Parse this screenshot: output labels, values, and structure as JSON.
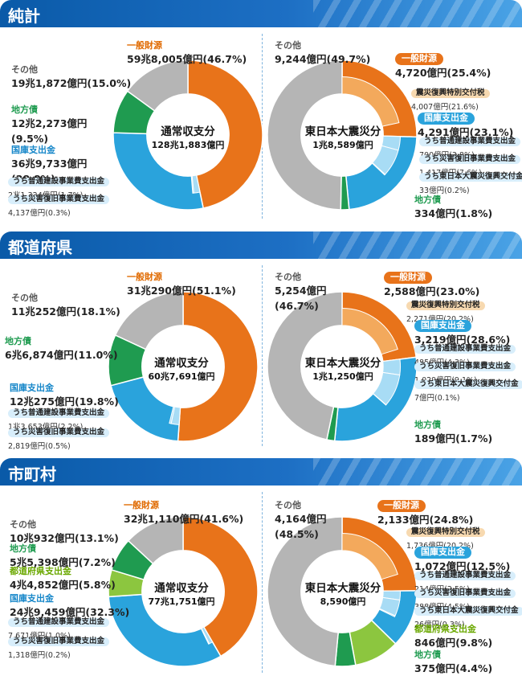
{
  "sections": [
    {
      "title": "純計",
      "left": {
        "center_title": "通常収支分",
        "center_total": "128兆1,883億円",
        "labels": [
          {
            "cat": "一般財源",
            "val": "59兆8,005億円(46.7%)"
          },
          {
            "cat": "その他",
            "val": "19兆1,872億円(15.0%)"
          },
          {
            "cat": "地方債",
            "val": "12兆2,273億円",
            "val2": "(9.5%)"
          },
          {
            "cat": "国庫支出金",
            "val": "36兆9,733億円",
            "val2": "(28.8%)"
          }
        ],
        "subs": [
          {
            "name": "うち普通建設事業費支出金",
            "val": "2兆1,324億円(1.7%)"
          },
          {
            "name": "うち災害復旧事業費支出金",
            "val": "4,137億円(0.3%)"
          }
        ]
      },
      "right": {
        "center_title": "東日本大震災分",
        "center_total": "1兆8,589億円",
        "labels": [
          {
            "cat": "その他",
            "val": "9,244億円(49.7%)"
          },
          {
            "cat": "一般財源",
            "val": "4,720億円(25.4%)"
          },
          {
            "cat": "国庫支出金",
            "val": "4,291億円(23.1%)"
          },
          {
            "cat": "地方債",
            "val": "334億円(1.8%)"
          }
        ],
        "sub_orange": {
          "name": "震災復興特別交付税",
          "val": "4,007億円(21.6%)"
        },
        "subs": [
          {
            "name": "うち普通建設事業費支出金",
            "val": "700億円(3.8%)"
          },
          {
            "name": "うち災害復旧事業費支出金",
            "val": "1,417億円(7.6%)"
          },
          {
            "name": "うち東日本大震災復興交付金",
            "val": "33億円(0.2%)"
          }
        ]
      }
    },
    {
      "title": "都道府県",
      "left": {
        "center_title": "通常収支分",
        "center_total": "60兆7,691億円",
        "labels": [
          {
            "cat": "一般財源",
            "val": "31兆290億円(51.1%)"
          },
          {
            "cat": "その他",
            "val": "11兆252億円(18.1%)"
          },
          {
            "cat": "地方債",
            "val": "6兆6,874億円(11.0%)"
          },
          {
            "cat": "国庫支出金",
            "val": "12兆275億円(19.8%)"
          }
        ],
        "subs": [
          {
            "name": "うち普通建設事業費支出金",
            "val": "1兆3,653億円(2.2%)"
          },
          {
            "name": "うち災害復旧事業費支出金",
            "val": "2,819億円(0.5%)"
          }
        ]
      },
      "right": {
        "center_title": "東日本大震災分",
        "center_total": "1兆1,250億円",
        "labels": [
          {
            "cat": "その他",
            "val": "5,254億円",
            "val2": "(46.7%)"
          },
          {
            "cat": "一般財源",
            "val": "2,588億円(23.0%)"
          },
          {
            "cat": "国庫支出金",
            "val": "3,219億円(28.6%)"
          },
          {
            "cat": "地方債",
            "val": "189億円(1.7%)"
          }
        ],
        "sub_orange": {
          "name": "震災復興特別交付税",
          "val": "2,271億円(20.2%)"
        },
        "subs": [
          {
            "name": "うち普通建設事業費支出金",
            "val": "485億円(4.3%)"
          },
          {
            "name": "うち災害復旧事業費支出金",
            "val": "1,029億円(9.1%)"
          },
          {
            "name": "うち東日本大震災復興交付金",
            "val": "7億円(0.1%)"
          }
        ]
      }
    },
    {
      "title": "市町村",
      "left": {
        "center_title": "通常収支分",
        "center_total": "77兆1,751億円",
        "labels": [
          {
            "cat": "一般財源",
            "val": "32兆1,110億円(41.6%)"
          },
          {
            "cat": "その他",
            "val": "10兆932億円(13.1%)"
          },
          {
            "cat": "地方債",
            "val": "5兆5,398億円(7.2%)"
          },
          {
            "cat": "都道府県支出金",
            "val": "4兆4,852億円(5.8%)"
          },
          {
            "cat": "国庫支出金",
            "val": "24兆9,459億円(32.3%)"
          }
        ],
        "subs": [
          {
            "name": "うち普通建設事業費支出金",
            "val": "7,671億円(1.0%)"
          },
          {
            "name": "うち災害復旧事業費支出金",
            "val": "1,318億円(0.2%)"
          }
        ]
      },
      "right": {
        "center_title": "東日本大震災分",
        "center_total": "8,590億円",
        "labels": [
          {
            "cat": "その他",
            "val": "4,164億円",
            "val2": "(48.5%)"
          },
          {
            "cat": "一般財源",
            "val": "2,133億円(24.8%)"
          },
          {
            "cat": "国庫支出金",
            "val": "1,072億円(12.5%)"
          },
          {
            "cat": "都道府県支出金",
            "val": "846億円(9.8%)"
          },
          {
            "cat": "地方債",
            "val": "375億円(4.4%)"
          }
        ],
        "sub_orange": {
          "name": "震災復興特別交付税",
          "val": "1,736億円(20.2%)"
        },
        "subs": [
          {
            "name": "うち普通建設事業費支出金",
            "val": "214億円(2.5%)"
          },
          {
            "name": "うち災害復旧事業費支出金",
            "val": "388億円(4.5%)"
          },
          {
            "name": "うち東日本大震災復興交付金",
            "val": "26億円(0.3%)"
          }
        ]
      }
    }
  ],
  "colors": {
    "general": "#e8731a",
    "general_light": "#f3a95c",
    "national": "#2aa3dc",
    "national_light": "#a8dcf5",
    "bond": "#1f9b50",
    "pref": "#8cc63f",
    "other": "#b5b5b5",
    "banner": "#0a5aa8"
  },
  "chart_data": [
    {
      "type": "pie",
      "title": "純計 通常収支分",
      "categories": [
        "一般財源",
        "国庫支出金",
        "地方債",
        "その他"
      ],
      "values": [
        46.7,
        28.8,
        9.5,
        15.0
      ],
      "sub": [
        {
          "parent": "国庫支出金",
          "name": "うち普通建設事業費支出金",
          "value": 1.7
        },
        {
          "parent": "国庫支出金",
          "name": "うち災害復旧事業費支出金",
          "value": 0.3
        }
      ]
    },
    {
      "type": "pie",
      "title": "純計 東日本大震災分",
      "categories": [
        "一般財源",
        "国庫支出金",
        "地方債",
        "その他"
      ],
      "values": [
        25.4,
        23.1,
        1.8,
        49.7
      ],
      "sub": [
        {
          "parent": "一般財源",
          "name": "震災復興特別交付税",
          "value": 21.6
        },
        {
          "parent": "国庫支出金",
          "name": "うち普通建設事業費支出金",
          "value": 3.8
        },
        {
          "parent": "国庫支出金",
          "name": "うち災害復旧事業費支出金",
          "value": 7.6
        },
        {
          "parent": "国庫支出金",
          "name": "うち東日本大震災復興交付金",
          "value": 0.2
        }
      ]
    },
    {
      "type": "pie",
      "title": "都道府県 通常収支分",
      "categories": [
        "一般財源",
        "国庫支出金",
        "地方債",
        "その他"
      ],
      "values": [
        51.1,
        19.8,
        11.0,
        18.1
      ],
      "sub": [
        {
          "parent": "国庫支出金",
          "name": "うち普通建設事業費支出金",
          "value": 2.2
        },
        {
          "parent": "国庫支出金",
          "name": "うち災害復旧事業費支出金",
          "value": 0.5
        }
      ]
    },
    {
      "type": "pie",
      "title": "都道府県 東日本大震災分",
      "categories": [
        "一般財源",
        "国庫支出金",
        "地方債",
        "その他"
      ],
      "values": [
        23.0,
        28.6,
        1.7,
        46.7
      ],
      "sub": [
        {
          "parent": "一般財源",
          "name": "震災復興特別交付税",
          "value": 20.2
        },
        {
          "parent": "国庫支出金",
          "name": "うち普通建設事業費支出金",
          "value": 4.3
        },
        {
          "parent": "国庫支出金",
          "name": "うち災害復旧事業費支出金",
          "value": 9.1
        },
        {
          "parent": "国庫支出金",
          "name": "うち東日本大震災復興交付金",
          "value": 0.1
        }
      ]
    },
    {
      "type": "pie",
      "title": "市町村 通常収支分",
      "categories": [
        "一般財源",
        "国庫支出金",
        "都道府県支出金",
        "地方債",
        "その他"
      ],
      "values": [
        41.6,
        32.3,
        5.8,
        7.2,
        13.1
      ],
      "sub": [
        {
          "parent": "国庫支出金",
          "name": "うち普通建設事業費支出金",
          "value": 1.0
        },
        {
          "parent": "国庫支出金",
          "name": "うち災害復旧事業費支出金",
          "value": 0.2
        }
      ]
    },
    {
      "type": "pie",
      "title": "市町村 東日本大震災分",
      "categories": [
        "一般財源",
        "国庫支出金",
        "都道府県支出金",
        "地方債",
        "その他"
      ],
      "values": [
        24.8,
        12.5,
        9.8,
        4.4,
        48.5
      ],
      "sub": [
        {
          "parent": "一般財源",
          "name": "震災復興特別交付税",
          "value": 20.2
        },
        {
          "parent": "国庫支出金",
          "name": "うち普通建設事業費支出金",
          "value": 2.5
        },
        {
          "parent": "国庫支出金",
          "name": "うち災害復旧事業費支出金",
          "value": 4.5
        },
        {
          "parent": "国庫支出金",
          "name": "うち東日本大震災復興交付金",
          "value": 0.3
        }
      ]
    }
  ]
}
